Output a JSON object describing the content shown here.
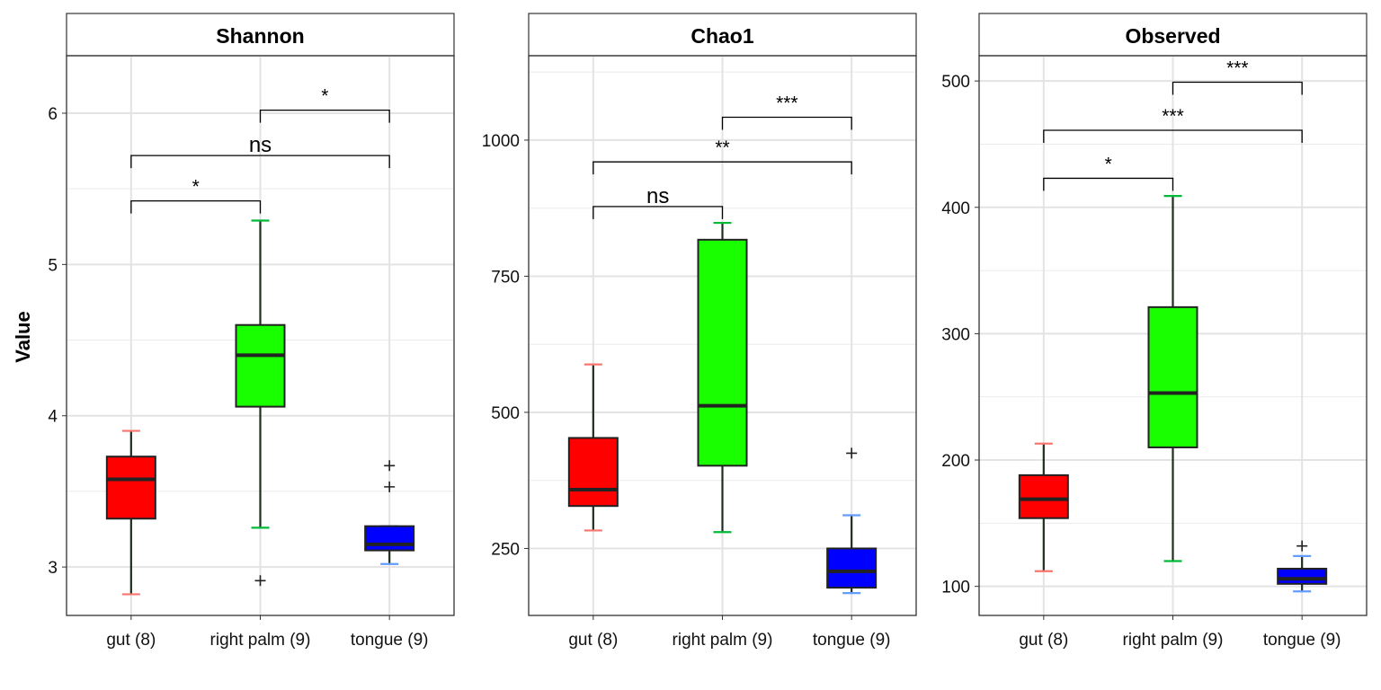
{
  "ylabel": "Value",
  "chart_data": [
    {
      "type": "box",
      "title": "Shannon",
      "categories": [
        "gut (8)",
        "right palm (9)",
        "tongue (9)"
      ],
      "ylim": [
        2.68,
        6.38
      ],
      "yticks": [
        3,
        4,
        5,
        6
      ],
      "grid": true,
      "colors": [
        "#ff0000",
        "#1aff00",
        "#0000ff"
      ],
      "whisker_colors": [
        "#f8766d",
        "#00ba38",
        "#619cff"
      ],
      "boxes": [
        {
          "name": "gut (8)",
          "q1": 3.32,
          "median": 3.58,
          "q3": 3.73,
          "whisker_low": 2.82,
          "whisker_high": 3.9,
          "outliers": []
        },
        {
          "name": "right palm (9)",
          "q1": 4.06,
          "median": 4.4,
          "q3": 4.6,
          "whisker_low": 3.26,
          "whisker_high": 5.29,
          "outliers": [
            2.91
          ]
        },
        {
          "name": "tongue (9)",
          "q1": 3.11,
          "median": 3.15,
          "q3": 3.27,
          "whisker_low": 3.02,
          "whisker_high": 3.27,
          "outliers": [
            3.53,
            3.67
          ]
        }
      ],
      "comparisons": [
        {
          "from": 0,
          "to": 1,
          "y": 5.42,
          "label": "*"
        },
        {
          "from": 0,
          "to": 2,
          "y": 5.72,
          "label": "ns"
        },
        {
          "from": 1,
          "to": 2,
          "y": 6.02,
          "label": "*"
        }
      ]
    },
    {
      "type": "box",
      "title": "Chao1",
      "categories": [
        "gut (8)",
        "right palm (9)",
        "tongue (9)"
      ],
      "ylim": [
        127,
        1155
      ],
      "yticks": [
        250,
        500,
        750,
        1000
      ],
      "grid": true,
      "colors": [
        "#ff0000",
        "#1aff00",
        "#0000ff"
      ],
      "whisker_colors": [
        "#f8766d",
        "#00ba38",
        "#619cff"
      ],
      "boxes": [
        {
          "name": "gut (8)",
          "q1": 328,
          "median": 358,
          "q3": 453,
          "whisker_low": 283,
          "whisker_high": 588,
          "outliers": []
        },
        {
          "name": "right palm (9)",
          "q1": 402,
          "median": 512,
          "q3": 817,
          "whisker_low": 280,
          "whisker_high": 848,
          "outliers": []
        },
        {
          "name": "tongue (9)",
          "q1": 178,
          "median": 208,
          "q3": 250,
          "whisker_low": 168,
          "whisker_high": 311,
          "outliers": [
            425
          ]
        }
      ],
      "comparisons": [
        {
          "from": 0,
          "to": 1,
          "y": 878,
          "label": "ns"
        },
        {
          "from": 0,
          "to": 2,
          "y": 960,
          "label": "**"
        },
        {
          "from": 1,
          "to": 2,
          "y": 1042,
          "label": "***"
        }
      ]
    },
    {
      "type": "box",
      "title": "Observed",
      "categories": [
        "gut (8)",
        "right palm (9)",
        "tongue (9)"
      ],
      "ylim": [
        77,
        520
      ],
      "yticks": [
        100,
        200,
        300,
        400,
        500
      ],
      "grid": true,
      "colors": [
        "#ff0000",
        "#1aff00",
        "#0000ff"
      ],
      "whisker_colors": [
        "#f8766d",
        "#00ba38",
        "#619cff"
      ],
      "boxes": [
        {
          "name": "gut (8)",
          "q1": 154,
          "median": 169,
          "q3": 188,
          "whisker_low": 112,
          "whisker_high": 213,
          "outliers": []
        },
        {
          "name": "right palm (9)",
          "q1": 210,
          "median": 253,
          "q3": 321,
          "whisker_low": 120,
          "whisker_high": 409,
          "outliers": []
        },
        {
          "name": "tongue (9)",
          "q1": 102,
          "median": 106,
          "q3": 114,
          "whisker_low": 96,
          "whisker_high": 124,
          "outliers": [
            132
          ]
        }
      ],
      "comparisons": [
        {
          "from": 0,
          "to": 1,
          "y": 423,
          "label": "*"
        },
        {
          "from": 0,
          "to": 2,
          "y": 461,
          "label": "***"
        },
        {
          "from": 1,
          "to": 2,
          "y": 499,
          "label": "***"
        }
      ]
    }
  ]
}
